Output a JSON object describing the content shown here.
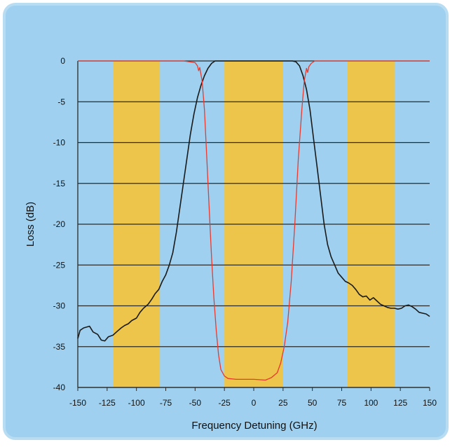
{
  "chart_data": {
    "type": "line",
    "title": "",
    "xlabel": "Frequency Detuning (GHz)",
    "ylabel": "Loss (dB)",
    "xlim": [
      -150,
      150
    ],
    "ylim": [
      -40,
      0
    ],
    "x_ticks": [
      -150,
      -125,
      -100,
      -75,
      -50,
      -25,
      0,
      25,
      50,
      75,
      100,
      125,
      150
    ],
    "y_ticks": [
      0,
      -5,
      -10,
      -15,
      -20,
      -25,
      -30,
      -35,
      -40
    ],
    "grid": "horizontal",
    "legend": "none",
    "highlight_bands": [
      [
        -120,
        -80
      ],
      [
        -25,
        25
      ],
      [
        80,
        120
      ]
    ],
    "series": [
      {
        "color": "#1a1a1a",
        "points": [
          [
            -150,
            -34
          ],
          [
            -148,
            -33
          ],
          [
            -145,
            -32.7
          ],
          [
            -140,
            -32.5
          ],
          [
            -137,
            -33.2
          ],
          [
            -133,
            -33.5
          ],
          [
            -130,
            -34.2
          ],
          [
            -127,
            -34.3
          ],
          [
            -124,
            -33.8
          ],
          [
            -120,
            -33.6
          ],
          [
            -117,
            -33.2
          ],
          [
            -113,
            -32.7
          ],
          [
            -110,
            -32.4
          ],
          [
            -107,
            -32.2
          ],
          [
            -104,
            -31.8
          ],
          [
            -100,
            -31.5
          ],
          [
            -97,
            -30.8
          ],
          [
            -94,
            -30.3
          ],
          [
            -90,
            -29.8
          ],
          [
            -87,
            -29.2
          ],
          [
            -84,
            -28.5
          ],
          [
            -81,
            -28.0
          ],
          [
            -78,
            -27.0
          ],
          [
            -75,
            -26.2
          ],
          [
            -72,
            -25.0
          ],
          [
            -69,
            -23.5
          ],
          [
            -66,
            -21.0
          ],
          [
            -63,
            -18.0
          ],
          [
            -60,
            -15.0
          ],
          [
            -57,
            -12.0
          ],
          [
            -54,
            -9.0
          ],
          [
            -51,
            -6.5
          ],
          [
            -48,
            -4.5
          ],
          [
            -45,
            -3.0
          ],
          [
            -42,
            -1.8
          ],
          [
            -39,
            -0.9
          ],
          [
            -36,
            -0.3
          ],
          [
            -33,
            0
          ],
          [
            -20,
            0
          ],
          [
            0,
            0
          ],
          [
            20,
            0
          ],
          [
            33,
            0
          ],
          [
            36,
            -0.1
          ],
          [
            39,
            -0.6
          ],
          [
            42,
            -1.8
          ],
          [
            45,
            -3.5
          ],
          [
            48,
            -6.0
          ],
          [
            51,
            -9.5
          ],
          [
            54,
            -13.0
          ],
          [
            57,
            -16.5
          ],
          [
            60,
            -20.0
          ],
          [
            63,
            -22.5
          ],
          [
            66,
            -24.0
          ],
          [
            69,
            -25.0
          ],
          [
            72,
            -26.0
          ],
          [
            75,
            -26.5
          ],
          [
            78,
            -27.0
          ],
          [
            81,
            -27.2
          ],
          [
            84,
            -27.5
          ],
          [
            87,
            -28.0
          ],
          [
            90,
            -28.6
          ],
          [
            93,
            -28.9
          ],
          [
            96,
            -28.8
          ],
          [
            99,
            -29.3
          ],
          [
            102,
            -29.0
          ],
          [
            105,
            -29.4
          ],
          [
            108,
            -29.8
          ],
          [
            111,
            -30.0
          ],
          [
            114,
            -30.2
          ],
          [
            117,
            -30.3
          ],
          [
            120,
            -30.3
          ],
          [
            123,
            -30.4
          ],
          [
            126,
            -30.3
          ],
          [
            129,
            -30.0
          ],
          [
            132,
            -29.9
          ],
          [
            135,
            -30.1
          ],
          [
            138,
            -30.4
          ],
          [
            141,
            -30.8
          ],
          [
            144,
            -30.9
          ],
          [
            147,
            -31.0
          ],
          [
            150,
            -31.3
          ]
        ]
      },
      {
        "color": "#e83a2f",
        "points": [
          [
            -150,
            0
          ],
          [
            -100,
            0
          ],
          [
            -60,
            0
          ],
          [
            -50,
            -0.2
          ],
          [
            -48,
            -0.6
          ],
          [
            -47,
            -1.2
          ],
          [
            -46,
            -0.8
          ],
          [
            -44,
            -2.5
          ],
          [
            -42,
            -6.0
          ],
          [
            -40,
            -12.0
          ],
          [
            -38,
            -18.0
          ],
          [
            -36,
            -24.0
          ],
          [
            -34,
            -29.0
          ],
          [
            -32,
            -33.0
          ],
          [
            -30,
            -36.0
          ],
          [
            -28,
            -37.8
          ],
          [
            -25,
            -38.6
          ],
          [
            -22,
            -38.9
          ],
          [
            -15,
            -39.0
          ],
          [
            0,
            -39.0
          ],
          [
            10,
            -39.1
          ],
          [
            15,
            -38.8
          ],
          [
            20,
            -38.2
          ],
          [
            23,
            -37.0
          ],
          [
            26,
            -35.0
          ],
          [
            29,
            -32.0
          ],
          [
            32,
            -27.0
          ],
          [
            35,
            -20.0
          ],
          [
            38,
            -12.0
          ],
          [
            41,
            -6.0
          ],
          [
            43,
            -2.5
          ],
          [
            45,
            -0.9
          ],
          [
            46,
            -1.4
          ],
          [
            47,
            -0.7
          ],
          [
            49,
            -0.3
          ],
          [
            52,
            0
          ],
          [
            60,
            0
          ],
          [
            150,
            0
          ]
        ]
      }
    ]
  }
}
